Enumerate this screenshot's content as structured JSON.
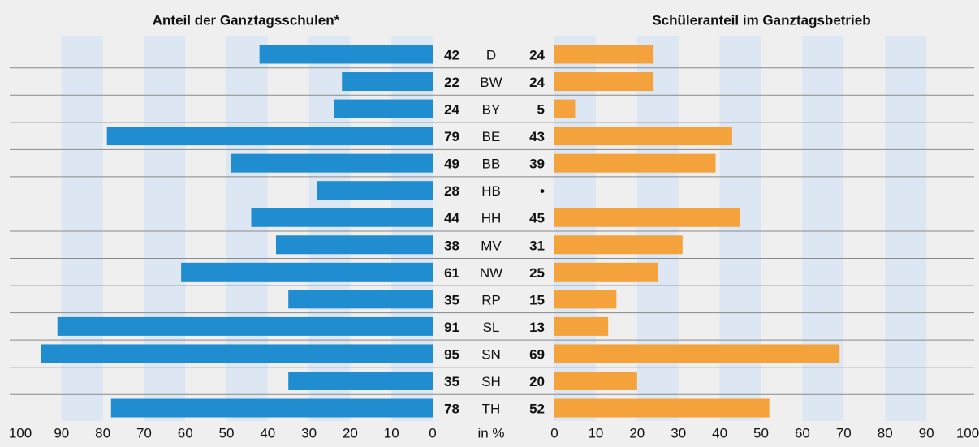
{
  "chart_data": {
    "type": "bar",
    "categories": [
      "D",
      "BW",
      "BY",
      "BE",
      "BB",
      "HB",
      "HH",
      "MV",
      "NW",
      "RP",
      "SL",
      "SN",
      "SH",
      "TH"
    ],
    "axis_label": "in %",
    "series": [
      {
        "name": "Anteil der Ganztagsschulen*",
        "color": "#1f8dcf",
        "values": [
          42,
          22,
          24,
          79,
          49,
          28,
          44,
          38,
          61,
          35,
          91,
          95,
          35,
          78
        ],
        "xlim": [
          100,
          0
        ],
        "xticks": [
          100,
          90,
          80,
          70,
          60,
          50,
          40,
          30,
          20,
          10,
          0
        ]
      },
      {
        "name": "Schüleranteil im Ganztagsbetrieb",
        "color": "#f4a23b",
        "values": [
          24,
          24,
          5,
          43,
          39,
          null,
          45,
          31,
          25,
          15,
          13,
          69,
          20,
          52
        ],
        "value_labels": [
          "24",
          "24",
          "5",
          "43",
          "39",
          "•",
          "45",
          "31",
          "25",
          "15",
          "13",
          "69",
          "20",
          "52"
        ],
        "xlim": [
          0,
          100
        ],
        "xticks": [
          0,
          10,
          20,
          30,
          40,
          50,
          60,
          70,
          80,
          90,
          100
        ]
      }
    ],
    "grid": true
  }
}
